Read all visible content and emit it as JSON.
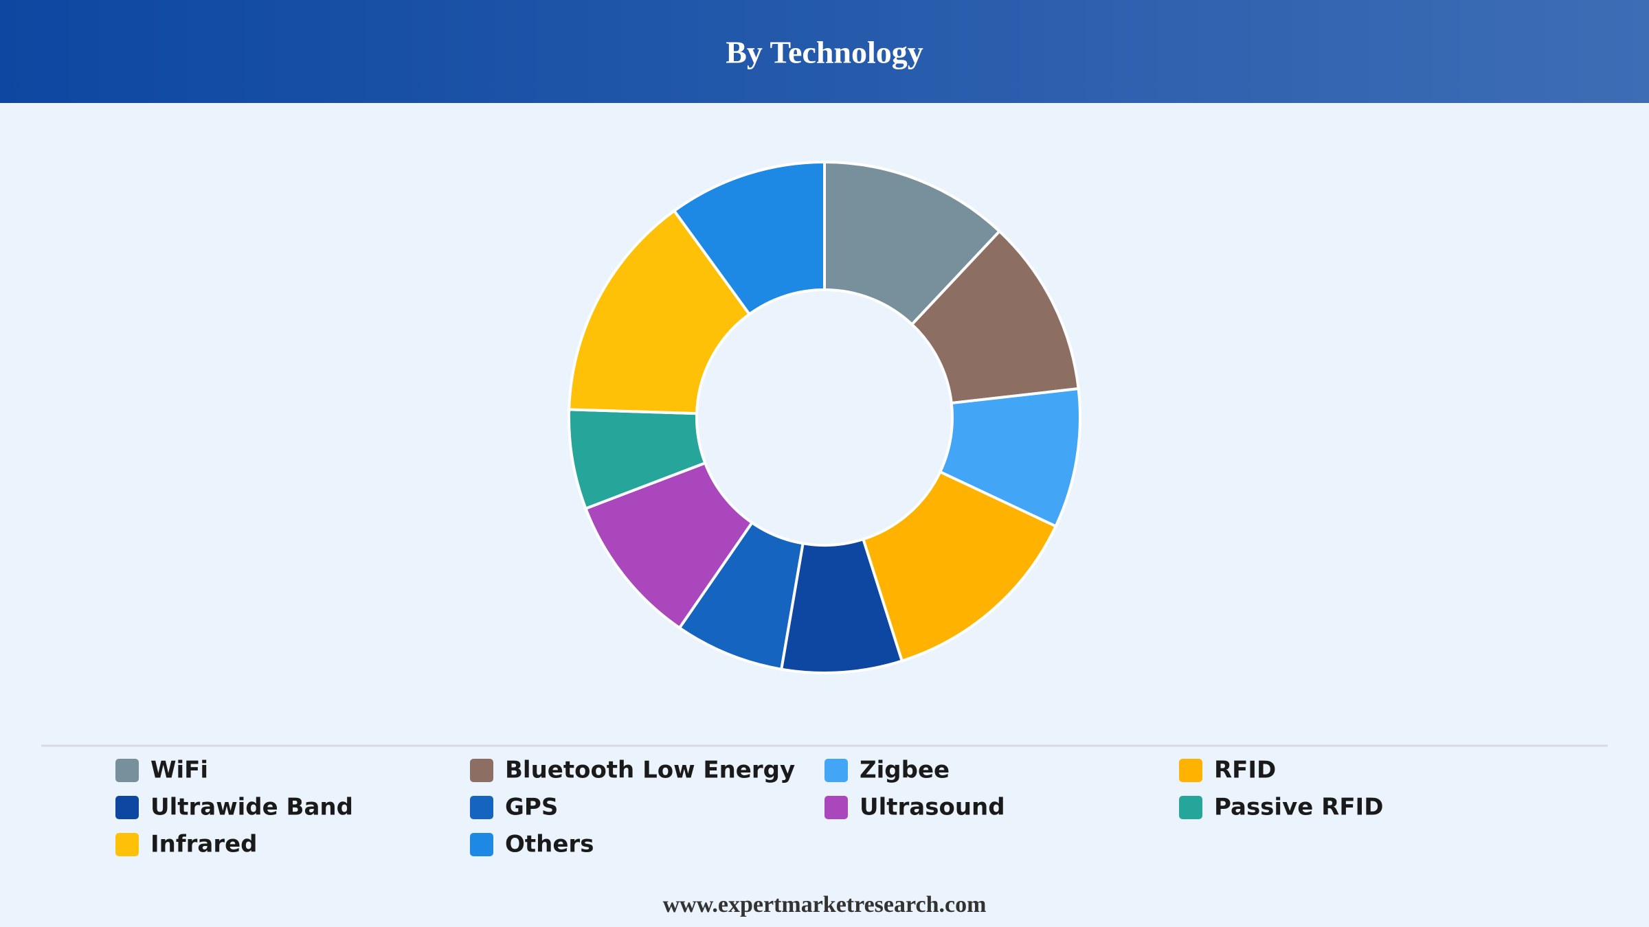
{
  "chart_data": {
    "type": "donut",
    "title": "By Technology",
    "categories": [
      "WiFi",
      "Bluetooth Low Energy",
      "Zigbee",
      "RFID",
      "Ultrawide Band",
      "GPS",
      "Ultrasound",
      "Passive RFID",
      "Infrared",
      "Others"
    ],
    "values": [
      12,
      11.2,
      8.8,
      13.1,
      7.6,
      6.9,
      9.6,
      6.3,
      14.5,
      10
    ],
    "colors": [
      "#78909c",
      "#8d6e63",
      "#42a5f5",
      "#ffb300",
      "#0d47a1",
      "#1565c0",
      "#ab47bc",
      "#26a69a",
      "#ffc107",
      "#1e88e5"
    ],
    "legend": "bottom"
  },
  "footer": "www.expertmarketresearch.com"
}
